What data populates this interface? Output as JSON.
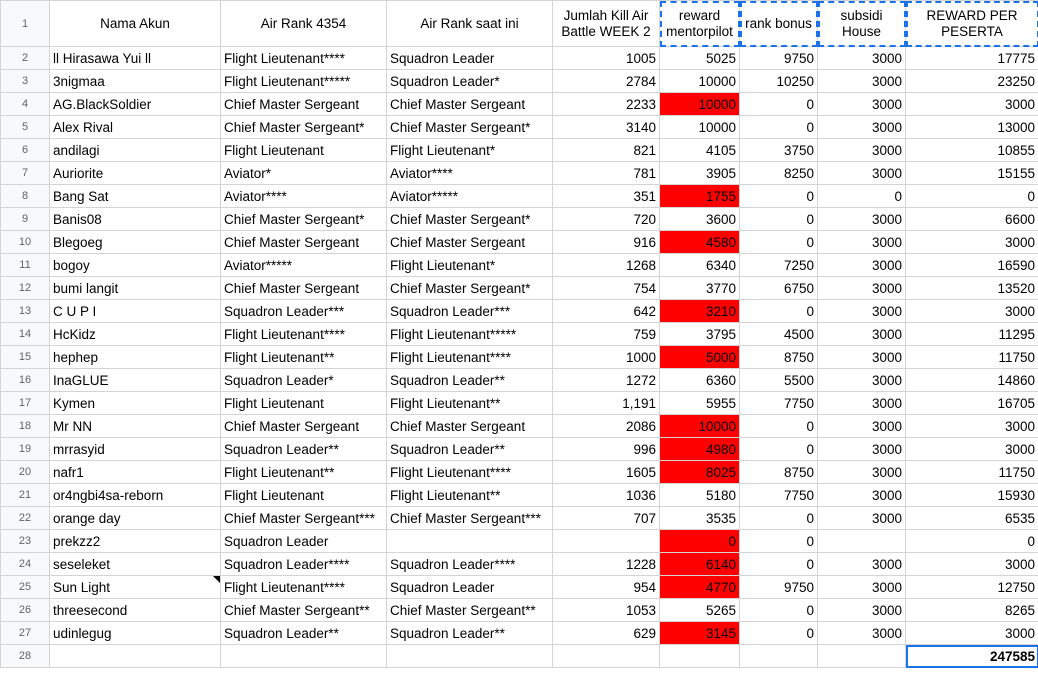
{
  "headers": {
    "rownum": "1",
    "name": "Nama Akun",
    "rank_4354": "Air Rank 4354",
    "rank_now": "Air Rank saat ini",
    "kills": "Jumlah Kill Air Battle WEEK 2",
    "reward": "reward mentorpilot",
    "bonus": "rank bonus",
    "subsidi": "subsidi House",
    "total": "REWARD PER PESERTA"
  },
  "rows": [
    {
      "n": "2",
      "name": " ll Hirasawa Yui ll",
      "r1": "Flight Lieutenant****",
      "r2": "Squadron Leader",
      "kills": "1005",
      "reward": "5025",
      "bonus": "9750",
      "sub": "3000",
      "total": "17775"
    },
    {
      "n": "3",
      "name": "3nigmaa",
      "r1": "Flight Lieutenant*****",
      "r2": "Squadron Leader*",
      "kills": "2784",
      "reward": "10000",
      "bonus": "10250",
      "sub": "3000",
      "total": "23250"
    },
    {
      "n": "4",
      "name": "AG.BlackSoldier",
      "r1": "Chief Master Sergeant",
      "r2": "Chief Master Sergeant",
      "kills": "2233",
      "reward": "10000",
      "bonus": "0",
      "sub": "3000",
      "total": "3000"
    },
    {
      "n": "5",
      "name": "Alex Rival",
      "r1": "Chief Master Sergeant*",
      "r2": "Chief Master Sergeant*",
      "kills": "3140",
      "reward": "10000",
      "bonus": "0",
      "sub": "3000",
      "total": "13000"
    },
    {
      "n": "6",
      "name": "andilagi",
      "r1": "Flight Lieutenant",
      "r2": "Flight Lieutenant*",
      "kills": "821",
      "reward": "4105",
      "bonus": "3750",
      "sub": "3000",
      "total": "10855"
    },
    {
      "n": "7",
      "name": "Auriorite",
      "r1": "Aviator*",
      "r2": "Aviator****",
      "kills": "781",
      "reward": "3905",
      "bonus": "8250",
      "sub": "3000",
      "total": "15155"
    },
    {
      "n": "8",
      "name": "Bang Sat",
      "r1": "Aviator****",
      "r2": "Aviator*****",
      "kills": "351",
      "reward": "1755",
      "bonus": "0",
      "sub": "0",
      "total": "0"
    },
    {
      "n": "9",
      "name": "Banis08",
      "r1": "Chief Master Sergeant*",
      "r2": "Chief Master Sergeant*",
      "kills": "720",
      "reward": "3600",
      "bonus": "0",
      "sub": "3000",
      "total": "6600"
    },
    {
      "n": "10",
      "name": "Blegoeg",
      "r1": "Chief Master Sergeant",
      "r2": "Chief Master Sergeant",
      "kills": "916",
      "reward": "4580",
      "bonus": "0",
      "sub": "3000",
      "total": "3000"
    },
    {
      "n": "11",
      "name": "bogoy",
      "r1": "Aviator*****",
      "r2": "Flight Lieutenant*",
      "kills": "1268",
      "reward": "6340",
      "bonus": "7250",
      "sub": "3000",
      "total": "16590"
    },
    {
      "n": "12",
      "name": "bumi langit",
      "r1": "Chief Master Sergeant",
      "r2": "Chief Master Sergeant*",
      "kills": "754",
      "reward": "3770",
      "bonus": "6750",
      "sub": "3000",
      "total": "13520"
    },
    {
      "n": "13",
      "name": "C U P I",
      "r1": "Squadron Leader***",
      "r2": "Squadron Leader***",
      "kills": "642",
      "reward": "3210",
      "bonus": "0",
      "sub": "3000",
      "total": "3000"
    },
    {
      "n": "14",
      "name": "HcKidz",
      "r1": "Flight Lieutenant****",
      "r2": "Flight Lieutenant*****",
      "kills": "759",
      "reward": "3795",
      "bonus": "4500",
      "sub": "3000",
      "total": "11295"
    },
    {
      "n": "15",
      "name": "hephep",
      "r1": "Flight Lieutenant**",
      "r2": "Flight Lieutenant****",
      "kills": "1000",
      "reward": "5000",
      "bonus": "8750",
      "sub": "3000",
      "total": "11750"
    },
    {
      "n": "16",
      "name": "InaGLUE",
      "r1": "Squadron Leader*",
      "r2": "Squadron Leader**",
      "kills": "1272",
      "reward": "6360",
      "bonus": "5500",
      "sub": "3000",
      "total": "14860"
    },
    {
      "n": "17",
      "name": "Kymen",
      "r1": "Flight Lieutenant",
      "r2": "Flight Lieutenant**",
      "kills": "1,191",
      "reward": "5955",
      "bonus": "7750",
      "sub": "3000",
      "total": "16705"
    },
    {
      "n": "18",
      "name": "Mr NN",
      "r1": "Chief Master Sergeant",
      "r2": "Chief Master Sergeant",
      "kills": "2086",
      "reward": "10000",
      "bonus": "0",
      "sub": "3000",
      "total": "3000"
    },
    {
      "n": "19",
      "name": "mrrasyid",
      "r1": "Squadron Leader**",
      "r2": "Squadron Leader**",
      "kills": "996",
      "reward": "4980",
      "bonus": "0",
      "sub": "3000",
      "total": "3000"
    },
    {
      "n": "20",
      "name": "nafr1",
      "r1": "Flight Lieutenant**",
      "r2": "Flight Lieutenant****",
      "kills": "1605",
      "reward": "8025",
      "bonus": "8750",
      "sub": "3000",
      "total": "11750"
    },
    {
      "n": "21",
      "name": "or4ngbi4sa-reborn",
      "r1": "Flight Lieutenant",
      "r2": "Flight Lieutenant**",
      "kills": "1036",
      "reward": "5180",
      "bonus": "7750",
      "sub": "3000",
      "total": "15930"
    },
    {
      "n": "22",
      "name": "orange day",
      "r1": "Chief Master Sergeant***",
      "r2": "Chief Master Sergeant***",
      "kills": "707",
      "reward": "3535",
      "bonus": "0",
      "sub": "3000",
      "total": "6535"
    },
    {
      "n": "23",
      "name": "prekzz2",
      "r1": "Squadron Leader",
      "r2": "",
      "kills": "",
      "reward": "0",
      "bonus": "0",
      "sub": "",
      "total": "0"
    },
    {
      "n": "24",
      "name": "seseleket",
      "r1": "Squadron Leader****",
      "r2": "Squadron Leader****",
      "kills": "1228",
      "reward": "6140",
      "bonus": "0",
      "sub": "3000",
      "total": "3000"
    },
    {
      "n": "25",
      "name": "Sun  Light",
      "r1": "Flight Lieutenant****",
      "r2": "Squadron Leader",
      "kills": "954",
      "reward": "4770",
      "bonus": "9750",
      "sub": "3000",
      "total": "12750"
    },
    {
      "n": "26",
      "name": "threesecond",
      "r1": "Chief Master Sergeant**",
      "r2": "Chief Master Sergeant**",
      "kills": "1053",
      "reward": "5265",
      "bonus": "0",
      "sub": "3000",
      "total": "8265"
    },
    {
      "n": "27",
      "name": "udinlegug",
      "r1": "Squadron Leader**",
      "r2": "Squadron Leader**",
      "kills": "629",
      "reward": "3145",
      "bonus": "0",
      "sub": "3000",
      "total": "3000"
    }
  ],
  "footer": {
    "n": "28",
    "total": "247585"
  }
}
